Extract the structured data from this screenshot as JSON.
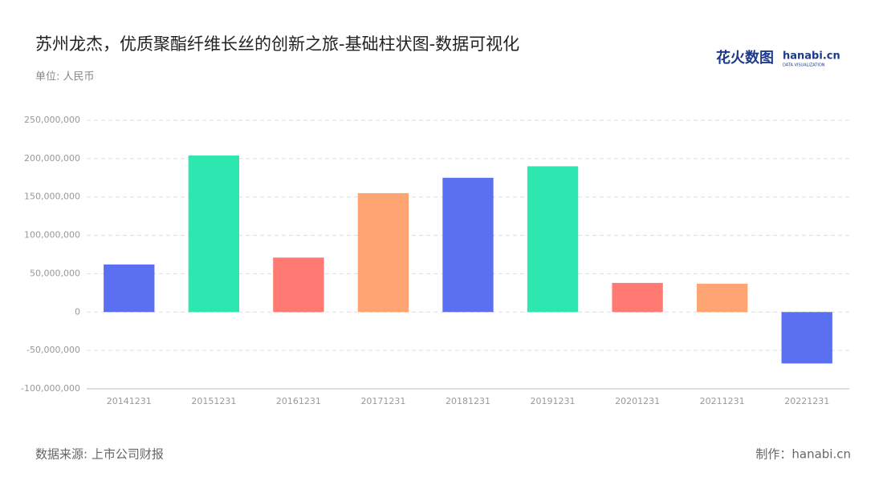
{
  "chart_data": {
    "type": "bar",
    "title": "苏州龙杰，优质聚酯纤维长丝的创新之旅-基础柱状图-数据可视化",
    "subtitle": "单位: 人民币",
    "source": "数据来源: 上市公司财报",
    "credit": "制作：hanabi.cn",
    "logo": {
      "name": "花火数图",
      "site": "hanabi.cn",
      "tagline": "DATA VISUALIZATION"
    },
    "categories": [
      "20141231",
      "20151231",
      "20161231",
      "20171231",
      "20181231",
      "20191231",
      "20201231",
      "20211231",
      "20221231"
    ],
    "values": [
      62000000,
      204000000,
      71000000,
      155000000,
      175000000,
      190000000,
      38000000,
      37000000,
      -67000000
    ],
    "colors": [
      "#5a70f0",
      "#2ee6b0",
      "#ff7a72",
      "#ffa473",
      "#5a70f0",
      "#2ee6b0",
      "#ff7a72",
      "#ffa473",
      "#5a70f0"
    ],
    "ylim": [
      -100000000,
      250000000
    ],
    "yticks": [
      {
        "value": -100000000,
        "label": "-100,000,000"
      },
      {
        "value": -50000000,
        "label": "-50,000,000"
      },
      0,
      {
        "value": 50000000,
        "label": "50,000,000"
      },
      {
        "value": 100000000,
        "label": "100,000,000"
      },
      {
        "value": 150000000,
        "label": "150,000,000"
      },
      {
        "value": 200000000,
        "label": "200,000,000"
      },
      {
        "value": 250000000,
        "label": "250,000,000"
      }
    ],
    "grid": true
  }
}
